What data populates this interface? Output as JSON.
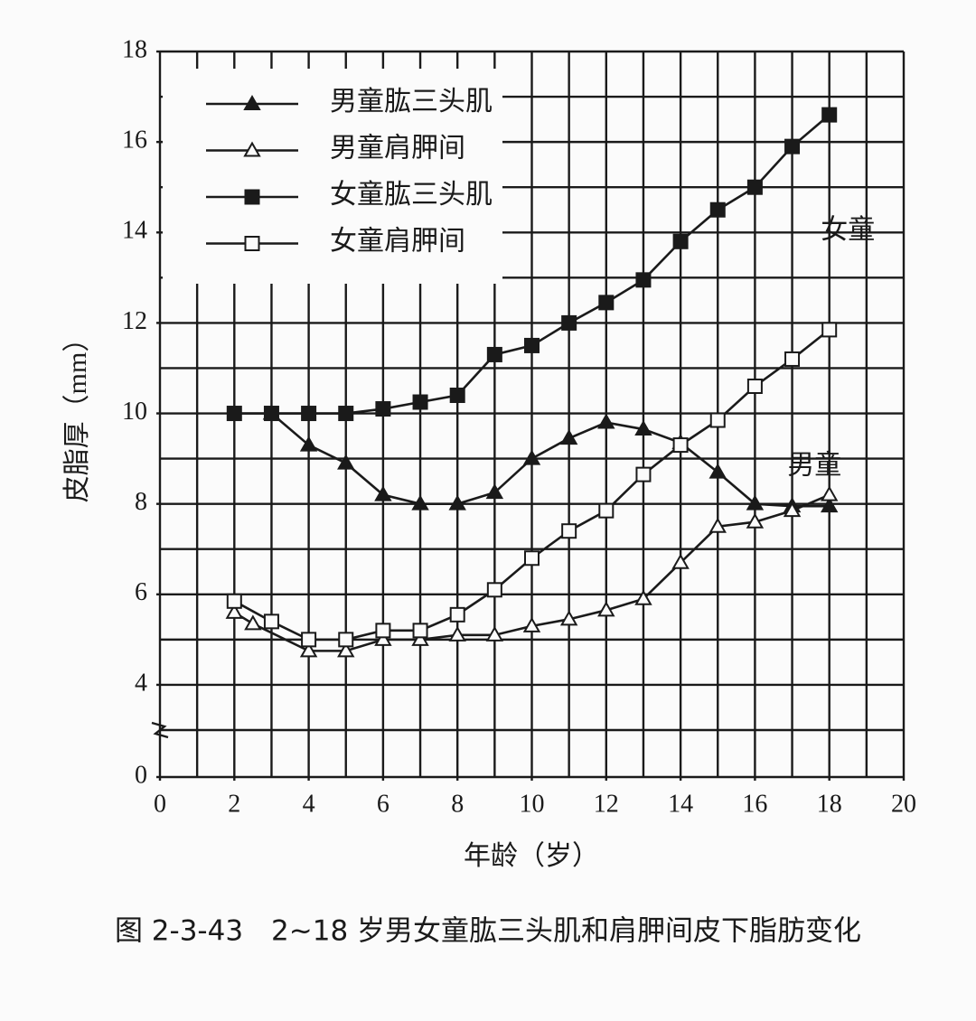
{
  "chart_data": {
    "type": "line",
    "title": "图 2-3-43　2~18 岁男女童肱三头肌和肩胛间皮下脂肪变化",
    "x_label": "年龄（岁）",
    "y_label": "皮脂厚（mm）",
    "xlim": [
      0,
      20
    ],
    "xticks": [
      0,
      2,
      4,
      6,
      8,
      10,
      12,
      14,
      16,
      18,
      20
    ],
    "ylim": [
      0,
      18
    ],
    "yticks": [
      0,
      4,
      6,
      8,
      10,
      12,
      14,
      16,
      18
    ],
    "axis_break": [
      0,
      3
    ],
    "grid": true,
    "grid_step": 1,
    "series": [
      {
        "name": "男童肱三头肌",
        "color": "#1a1a1a",
        "marker": "triangle",
        "filled": true,
        "x": [
          3,
          4,
          5,
          6,
          7,
          8,
          9,
          10,
          11,
          12,
          13,
          14,
          15,
          16,
          17,
          18
        ],
        "values": [
          10.0,
          9.3,
          8.9,
          8.2,
          8.0,
          8.0,
          8.25,
          9.0,
          9.45,
          9.8,
          9.65,
          9.35,
          8.7,
          8.0,
          7.95,
          7.95
        ]
      },
      {
        "name": "男童肩胛间",
        "color": "#1a1a1a",
        "marker": "triangle",
        "filled": false,
        "x": [
          2,
          2.5,
          4,
          5,
          6,
          7,
          8,
          9,
          10,
          11,
          12,
          13,
          14,
          15,
          16,
          17,
          18
        ],
        "values": [
          5.6,
          5.35,
          4.75,
          4.75,
          5.0,
          5.0,
          5.1,
          5.1,
          5.3,
          5.45,
          5.65,
          5.9,
          6.7,
          7.5,
          7.6,
          7.85,
          8.2
        ]
      },
      {
        "name": "女童肱三头肌",
        "color": "#1a1a1a",
        "marker": "square",
        "filled": true,
        "x": [
          2,
          3,
          4,
          5,
          6,
          7,
          8,
          9,
          10,
          11,
          12,
          13,
          14,
          15,
          16,
          17,
          18
        ],
        "values": [
          10.0,
          10.0,
          10.0,
          10.0,
          10.1,
          10.25,
          10.4,
          11.3,
          11.5,
          12.0,
          12.45,
          12.95,
          13.8,
          14.5,
          15.0,
          15.9,
          16.6
        ]
      },
      {
        "name": "女童肩胛间",
        "color": "#1a1a1a",
        "marker": "square",
        "filled": false,
        "x": [
          2,
          3,
          4,
          5,
          6,
          7,
          8,
          9,
          10,
          11,
          12,
          13,
          14,
          15,
          16,
          17,
          18
        ],
        "values": [
          5.85,
          5.4,
          5.0,
          5.0,
          5.2,
          5.2,
          5.55,
          6.1,
          6.8,
          7.4,
          7.85,
          8.65,
          9.3,
          9.85,
          10.6,
          11.2,
          11.85
        ]
      }
    ],
    "annotations": [
      {
        "text": "女童",
        "x": 18.5,
        "y": 14
      },
      {
        "text": "男童",
        "x": 17.6,
        "y": 8.8
      }
    ]
  }
}
